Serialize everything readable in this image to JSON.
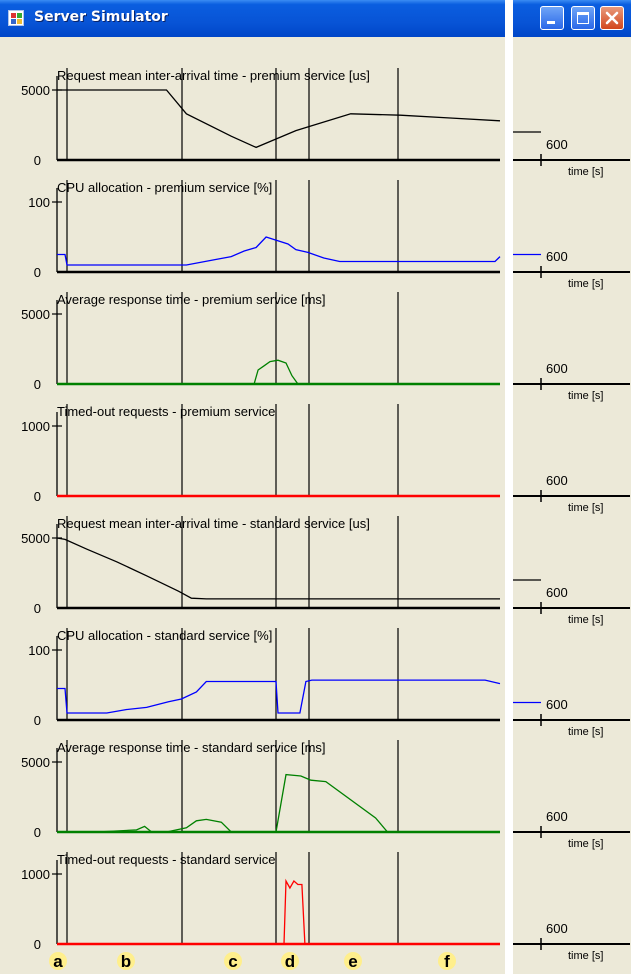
{
  "window": {
    "title": "Server Simulator",
    "buttons": [
      "minimize",
      "maximize",
      "close"
    ]
  },
  "markers": [
    "a",
    "b",
    "c",
    "d",
    "e",
    "f"
  ],
  "colors": {
    "black": "#000000",
    "blue": "#0000ff",
    "green": "#008000",
    "red": "#ff0000",
    "marker_bg": "#ffef8c"
  },
  "chart_data": [
    {
      "type": "line",
      "title": "Request mean inter-arrival time - premium service [us]",
      "ylabel": "",
      "yticks": [
        "5000",
        "0"
      ],
      "ylim": [
        0,
        5000
      ],
      "xlabel": "time [s]",
      "xtick": "600",
      "color": "#000000",
      "baseline_color": "#000000",
      "x": [
        0,
        22,
        60,
        110,
        130,
        175,
        200,
        240,
        295,
        345,
        395,
        445
      ],
      "y": [
        5000,
        5000,
        5000,
        5000,
        3300,
        1700,
        900,
        2100,
        3300,
        3200,
        3000,
        2800
      ],
      "right_value": 2000
    },
    {
      "type": "line",
      "title": "CPU allocation - premium service [%]",
      "ylabel": "",
      "yticks": [
        "100",
        "0"
      ],
      "ylim": [
        0,
        100
      ],
      "xlabel": "time [s]",
      "xtick": "600",
      "color": "#0000ff",
      "baseline_color": "#000000",
      "x": [
        0,
        8,
        10,
        70,
        130,
        160,
        175,
        188,
        200,
        210,
        232,
        240,
        252,
        268,
        284,
        300,
        340,
        380,
        440,
        445
      ],
      "y": [
        25,
        25,
        10,
        10,
        10,
        18,
        22,
        30,
        35,
        50,
        40,
        32,
        28,
        20,
        15,
        15,
        15,
        15,
        15,
        22
      ],
      "right_value": 25
    },
    {
      "type": "line",
      "title": "Average response time - premium service [ms]",
      "ylabel": "",
      "yticks": [
        "5000",
        "0"
      ],
      "ylim": [
        0,
        5000
      ],
      "xlabel": "time [s]",
      "xtick": "600",
      "color": "#008000",
      "baseline_color": "#008000",
      "x": [
        0,
        100,
        198,
        202,
        208,
        214,
        222,
        230,
        236,
        242,
        260,
        445
      ],
      "y": [
        0,
        0,
        0,
        1000,
        1300,
        1600,
        1700,
        1500,
        600,
        0,
        0,
        0
      ],
      "right_value": 0
    },
    {
      "type": "line",
      "title": "Timed-out requests - premium service",
      "ylabel": "",
      "yticks": [
        "1000",
        "0"
      ],
      "ylim": [
        0,
        1000
      ],
      "xlabel": "time [s]",
      "xtick": "600",
      "color": "#ff0000",
      "baseline_color": "#ff0000",
      "x": [
        0,
        445
      ],
      "y": [
        0,
        0
      ],
      "right_value": 0
    },
    {
      "type": "line",
      "title": "Request mean inter-arrival time - standard service [us]",
      "ylabel": "",
      "yticks": [
        "5000",
        "0"
      ],
      "ylim": [
        0,
        5000
      ],
      "xlabel": "time [s]",
      "xtick": "600",
      "color": "#000000",
      "baseline_color": "#000000",
      "x": [
        0,
        8,
        30,
        60,
        90,
        122,
        135,
        150,
        200,
        300,
        445
      ],
      "y": [
        5000,
        4900,
        4200,
        3300,
        2300,
        1200,
        700,
        650,
        650,
        650,
        650
      ],
      "right_value": 2000
    },
    {
      "type": "line",
      "title": "CPU allocation - standard service [%]",
      "ylabel": "",
      "yticks": [
        "100",
        "0"
      ],
      "ylim": [
        0,
        100
      ],
      "xlabel": "time [s]",
      "xtick": "600",
      "color": "#0000ff",
      "baseline_color": "#000000",
      "x": [
        0,
        8,
        10,
        50,
        70,
        90,
        112,
        125,
        140,
        150,
        180,
        220,
        222,
        244,
        250,
        256,
        300,
        430,
        445
      ],
      "y": [
        45,
        45,
        10,
        10,
        15,
        18,
        26,
        30,
        40,
        55,
        55,
        55,
        10,
        10,
        55,
        57,
        57,
        57,
        52
      ],
      "right_value": 25
    },
    {
      "type": "line",
      "title": "Average response time - standard service [ms]",
      "ylabel": "",
      "yticks": [
        "5000",
        "0"
      ],
      "ylim": [
        0,
        5000
      ],
      "xlabel": "time [s]",
      "xtick": "600",
      "color": "#008000",
      "baseline_color": "#008000",
      "x": [
        0,
        40,
        80,
        88,
        95,
        110,
        130,
        140,
        150,
        165,
        175,
        220,
        230,
        245,
        255,
        270,
        320,
        332,
        445
      ],
      "y": [
        0,
        0,
        150,
        400,
        0,
        0,
        300,
        800,
        900,
        700,
        0,
        0,
        4100,
        4000,
        3700,
        3600,
        1000,
        0,
        0
      ],
      "right_value": 0
    },
    {
      "type": "line",
      "title": "Timed-out requests - standard service",
      "ylabel": "",
      "yticks": [
        "1000",
        "0"
      ],
      "ylim": [
        0,
        1000
      ],
      "xlabel": "time [s]",
      "xtick": "600",
      "color": "#ff0000",
      "baseline_color": "#ff0000",
      "x": [
        0,
        228,
        230,
        234,
        238,
        242,
        246,
        249,
        251,
        253,
        445
      ],
      "y": [
        0,
        0,
        900,
        800,
        900,
        850,
        850,
        0,
        0,
        0,
        0
      ],
      "right_value": 0
    }
  ]
}
